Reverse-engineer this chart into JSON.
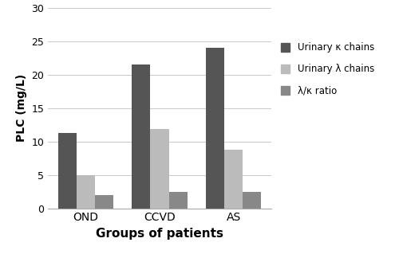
{
  "groups": [
    "OND",
    "CCVD",
    "AS"
  ],
  "series": {
    "kappa": [
      11.2,
      21.5,
      24.0
    ],
    "lambda": [
      5.0,
      11.8,
      8.8
    ],
    "ratio": [
      2.0,
      2.4,
      2.5
    ]
  },
  "colors": {
    "kappa": "#555555",
    "lambda": "#bbbbbb",
    "ratio": "#888888"
  },
  "legend_labels": [
    "Urinary κ chains",
    "Urinary λ chains",
    "λ/κ ratio"
  ],
  "xlabel": "Groups of patients",
  "ylabel": "PLC (mg/L)",
  "ylim": [
    0,
    30
  ],
  "yticks": [
    0,
    5,
    10,
    15,
    20,
    25,
    30
  ],
  "bar_width": 0.25,
  "background_color": "#ffffff",
  "grid_color": "#cccccc"
}
